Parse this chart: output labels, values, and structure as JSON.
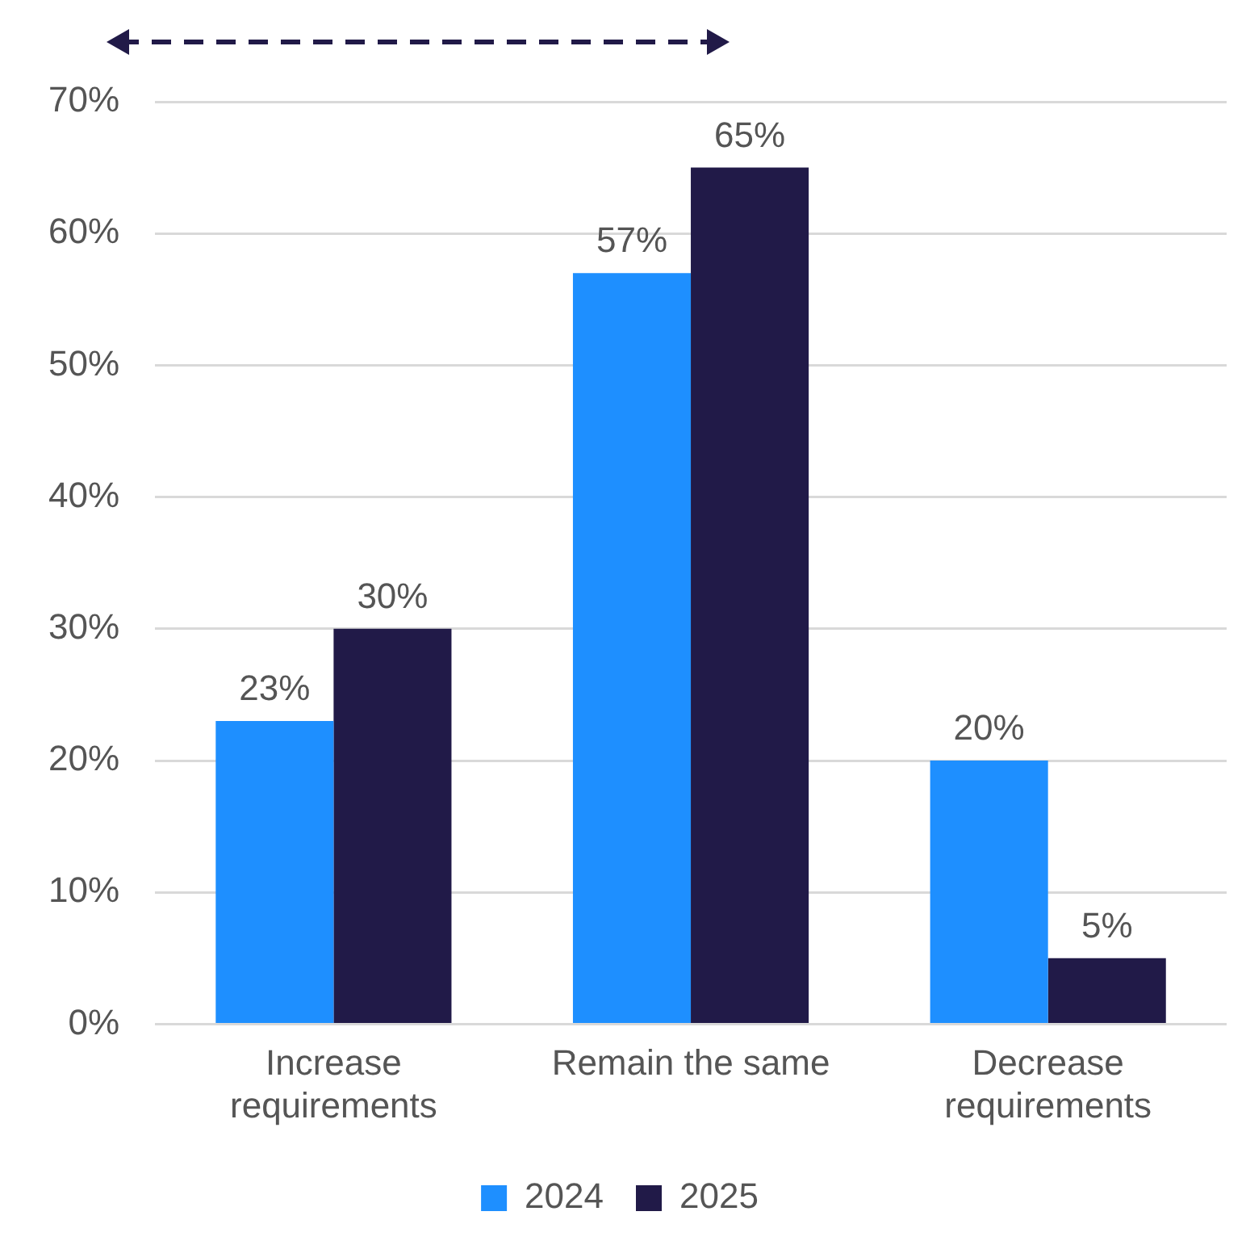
{
  "chart_data": {
    "type": "bar",
    "categories": [
      "Increase requirements",
      "Remain the same",
      "Decrease requirements"
    ],
    "series": [
      {
        "name": "2024",
        "color": "#1e8fff",
        "values": [
          23,
          57,
          20
        ]
      },
      {
        "name": "2025",
        "color": "#211a48",
        "values": [
          30,
          65,
          5
        ]
      }
    ],
    "ylim": [
      0,
      70
    ],
    "yticks": [
      {
        "value": 0,
        "label": "0%"
      },
      {
        "value": 10,
        "label": "10%"
      },
      {
        "value": 20,
        "label": "20%"
      },
      {
        "value": 30,
        "label": "30%"
      },
      {
        "value": 40,
        "label": "40%"
      },
      {
        "value": 50,
        "label": "50%"
      },
      {
        "value": 60,
        "label": "60%"
      },
      {
        "value": 70,
        "label": "70%"
      }
    ],
    "value_labels": [
      [
        "23%",
        "57%",
        "20%"
      ],
      [
        "30%",
        "65%",
        "5%"
      ]
    ],
    "grid": "y",
    "legend": "bottom"
  }
}
